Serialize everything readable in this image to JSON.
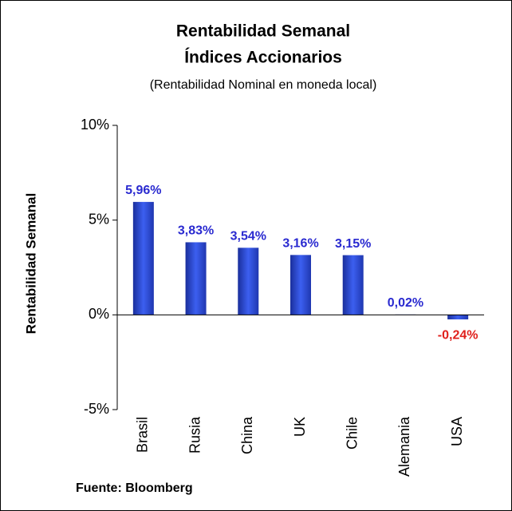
{
  "chart_data": {
    "type": "bar",
    "title": "Rentabilidad Semanal",
    "subtitle": "Índices Accionarios",
    "note": "(Rentabilidad Nominal en moneda local)",
    "y_label": "Rentabilidad Semanal",
    "source": "Fuente: Bloomberg",
    "categories": [
      "Brasil",
      "Rusia",
      "China",
      "UK",
      "Chile",
      "Alemania",
      "USA"
    ],
    "values": [
      5.96,
      3.83,
      3.54,
      3.16,
      3.15,
      0.02,
      -0.24
    ],
    "value_labels": [
      "5,96%",
      "3,83%",
      "3,54%",
      "3,16%",
      "3,15%",
      "0,02%",
      "-0,24%"
    ],
    "color": "#2f4fd6",
    "label_color": "#2a2ad0",
    "negative_label_color": "#e0201c",
    "ylim": [
      -5,
      10
    ],
    "yticks": [
      {
        "value": -5,
        "label": "-5%"
      },
      {
        "value": 0,
        "label": "0%"
      },
      {
        "value": 5,
        "label": "5%"
      },
      {
        "value": 10,
        "label": "10%"
      }
    ]
  }
}
